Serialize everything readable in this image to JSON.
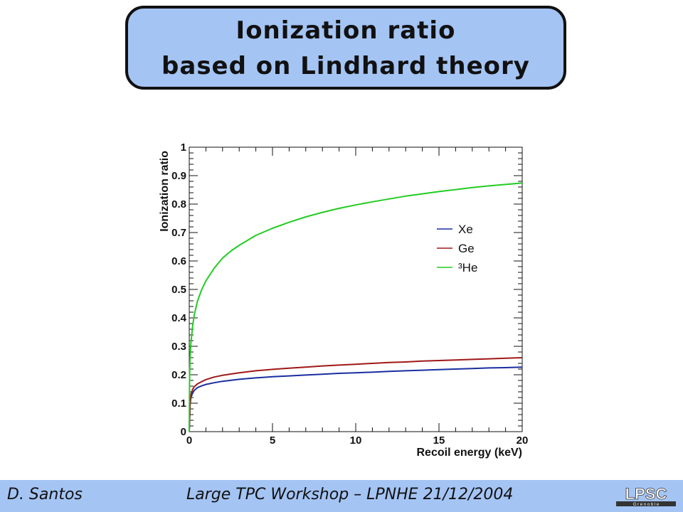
{
  "slide": {
    "title_line1": "Ionization ratio",
    "title_line2": "based on Lindhard theory",
    "footer_author": "D. Santos",
    "footer_event": "Large TPC Workshop – LPNHE  21/12/2004",
    "logo_text": "LPSC",
    "logo_subtext": "G r e n o b l e",
    "background_color": "#ffffff",
    "accent_color": "#a4c4f4"
  },
  "chart_data": {
    "type": "line",
    "title": "",
    "xlabel": "Recoil energy (keV)",
    "ylabel": "Ionization ratio",
    "xlim": [
      0,
      20
    ],
    "ylim": [
      0,
      1
    ],
    "xticks": [
      "0",
      "5",
      "10",
      "15",
      "20"
    ],
    "yticks": [
      "0",
      "0.1",
      "0.2",
      "0.3",
      "0.4",
      "0.5",
      "0.6",
      "0.7",
      "0.8",
      "0.9",
      "1"
    ],
    "grid": false,
    "legend_position": "center-right",
    "series": [
      {
        "name": "Xe",
        "color": "#1a2ea0",
        "x": [
          0,
          0.05,
          0.1,
          0.2,
          0.3,
          0.5,
          0.75,
          1,
          1.5,
          2,
          3,
          4,
          5,
          6,
          7,
          8,
          9,
          10,
          11,
          12,
          13,
          14,
          15,
          16,
          17,
          18,
          19,
          20
        ],
        "y": [
          0,
          0.095,
          0.12,
          0.135,
          0.145,
          0.155,
          0.161,
          0.166,
          0.172,
          0.177,
          0.184,
          0.189,
          0.193,
          0.196,
          0.199,
          0.202,
          0.205,
          0.207,
          0.209,
          0.212,
          0.214,
          0.216,
          0.218,
          0.22,
          0.222,
          0.224,
          0.225,
          0.227
        ]
      },
      {
        "name": "Ge",
        "color": "#a01818",
        "x": [
          0,
          0.05,
          0.1,
          0.2,
          0.3,
          0.5,
          0.75,
          1,
          1.5,
          2,
          3,
          4,
          5,
          6,
          7,
          8,
          9,
          10,
          11,
          12,
          13,
          14,
          15,
          16,
          17,
          18,
          19,
          20
        ],
        "y": [
          0,
          0.11,
          0.13,
          0.148,
          0.158,
          0.168,
          0.176,
          0.183,
          0.192,
          0.198,
          0.207,
          0.214,
          0.219,
          0.223,
          0.227,
          0.231,
          0.234,
          0.237,
          0.24,
          0.243,
          0.245,
          0.248,
          0.25,
          0.252,
          0.254,
          0.256,
          0.258,
          0.26
        ]
      },
      {
        "name": "³He",
        "color": "#22cc22",
        "x": [
          0,
          0.02,
          0.05,
          0.1,
          0.2,
          0.3,
          0.5,
          0.75,
          1,
          1.5,
          2,
          2.5,
          3,
          4,
          5,
          6,
          7,
          8,
          9,
          10,
          11,
          12,
          13,
          14,
          15,
          16,
          17,
          18,
          19,
          20
        ],
        "y": [
          0,
          0.2,
          0.26,
          0.31,
          0.37,
          0.41,
          0.46,
          0.5,
          0.53,
          0.575,
          0.61,
          0.635,
          0.655,
          0.69,
          0.715,
          0.736,
          0.755,
          0.771,
          0.785,
          0.797,
          0.808,
          0.818,
          0.828,
          0.836,
          0.844,
          0.851,
          0.858,
          0.864,
          0.869,
          0.874
        ]
      }
    ]
  }
}
